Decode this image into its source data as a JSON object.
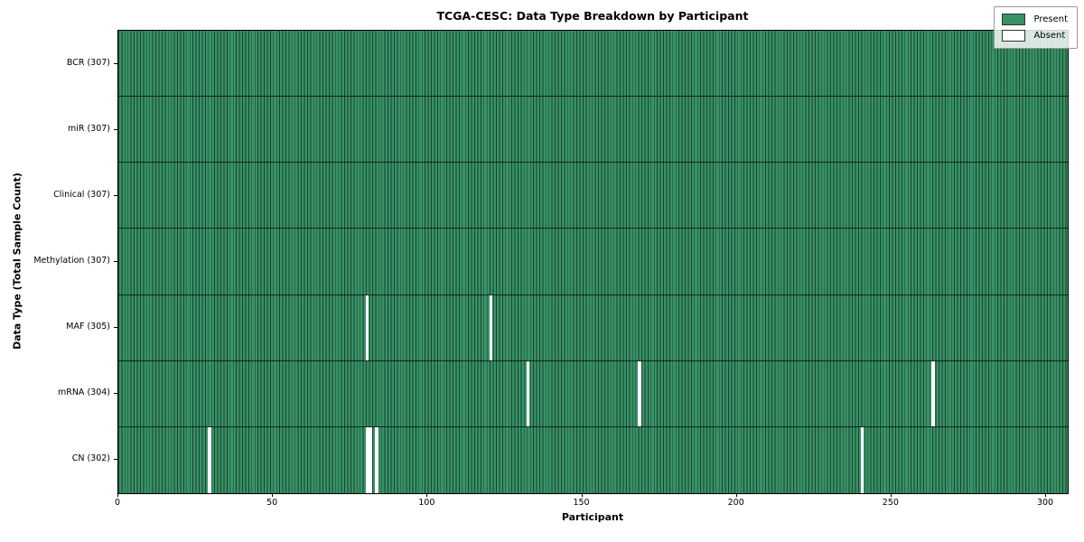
{
  "title": "TCGA-CESC: Data Type Breakdown by Participant",
  "axes": {
    "xlabel": "Participant",
    "ylabel": "Data Type (Total Sample Count)"
  },
  "legend": {
    "present_label": "Present",
    "absent_label": "Absent"
  },
  "colors": {
    "present": "#389266",
    "absent": "#ffffff",
    "cell_edge": "rgba(0,0,0,0.55)",
    "row_separator": "rgba(0,0,0,0.7)",
    "legend_bg": "rgba(255,255,255,0.82)"
  },
  "chart_data": {
    "type": "heatmap",
    "title": "TCGA-CESC: Data Type Breakdown by Participant",
    "xlabel": "Participant",
    "ylabel": "Data Type (Total Sample Count)",
    "x_range": [
      0,
      307
    ],
    "n_participants": 307,
    "x_ticks": [
      0,
      50,
      100,
      150,
      200,
      250,
      300
    ],
    "legend_entries": [
      "Present",
      "Absent"
    ],
    "legend_position": "upper right",
    "grid": false,
    "rows": [
      {
        "label": "BCR (307)",
        "data_type": "BCR",
        "count": 307,
        "absent_participants": []
      },
      {
        "label": "miR (307)",
        "data_type": "miR",
        "count": 307,
        "absent_participants": []
      },
      {
        "label": "Clinical (307)",
        "data_type": "Clinical",
        "count": 307,
        "absent_participants": []
      },
      {
        "label": "Methylation (307)",
        "data_type": "Methylation",
        "count": 307,
        "absent_participants": []
      },
      {
        "label": "MAF (305)",
        "data_type": "MAF",
        "count": 305,
        "absent_participants": [
          80,
          120
        ]
      },
      {
        "label": "mRNA (304)",
        "data_type": "mRNA",
        "count": 304,
        "absent_participants": [
          132,
          168,
          263
        ]
      },
      {
        "label": "CN (302)",
        "data_type": "CN",
        "count": 302,
        "absent_participants": [
          29,
          80,
          81,
          83,
          240
        ]
      }
    ]
  }
}
